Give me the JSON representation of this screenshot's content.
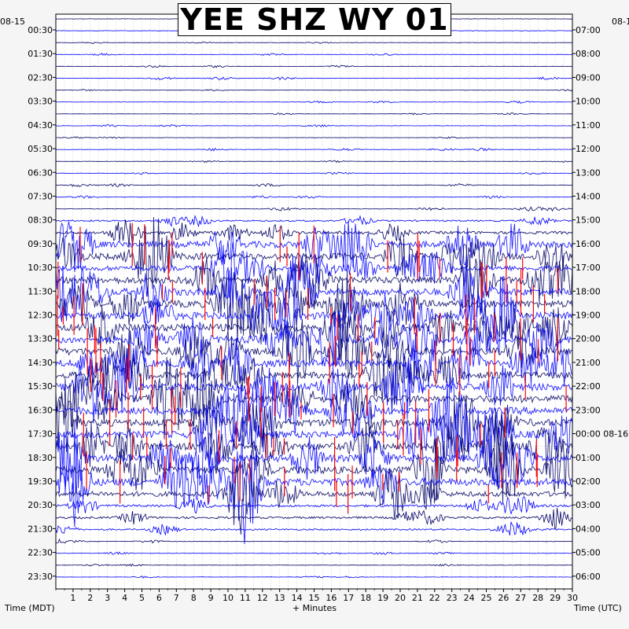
{
  "chart_data": {
    "type": "line",
    "title": "YEE SHZ WY 01",
    "xlabel": "+ Minutes",
    "left_axis_label": "Time (MDT)",
    "right_axis_label": "Time (UTC)",
    "left_date": "08-15",
    "right_date": "08-1",
    "right_date_change": "08-16",
    "x_ticks": [
      "1",
      "2",
      "3",
      "4",
      "5",
      "6",
      "7",
      "8",
      "9",
      "10",
      "11",
      "12",
      "13",
      "14",
      "15",
      "16",
      "17",
      "18",
      "19",
      "20",
      "21",
      "22",
      "23",
      "24",
      "25",
      "26",
      "27",
      "28",
      "29",
      "30"
    ],
    "xlim": [
      0,
      30
    ],
    "left_times": [
      "00:30",
      "01:30",
      "02:30",
      "03:30",
      "04:30",
      "05:30",
      "06:30",
      "07:30",
      "08:30",
      "09:30",
      "10:30",
      "11:30",
      "12:30",
      "13:30",
      "14:30",
      "15:30",
      "16:30",
      "17:30",
      "18:30",
      "19:30",
      "20:30",
      "21:30",
      "22:30",
      "23:30"
    ],
    "right_times": [
      "07:00",
      "08:00",
      "09:00",
      "10:00",
      "11:00",
      "12:00",
      "13:00",
      "14:00",
      "15:00",
      "16:00",
      "17:00",
      "18:00",
      "19:00",
      "20:00",
      "21:00",
      "22:00",
      "23:00",
      "00:00",
      "01:00",
      "02:00",
      "03:00",
      "04:00",
      "05:00",
      "06:00"
    ],
    "trace_count": 48,
    "trace_colors": [
      "#000066",
      "#0000ff"
    ],
    "clip_color": "#ff0000",
    "trace_activity": [
      0.15,
      0.18,
      0.12,
      0.15,
      0.15,
      0.2,
      0.12,
      0.15,
      0.12,
      0.15,
      0.12,
      0.18,
      0.12,
      0.15,
      0.2,
      0.18,
      0.25,
      0.3,
      0.55,
      0.9,
      0.9,
      0.7,
      0.95,
      1.0,
      1.0,
      1.0,
      1.0,
      1.0,
      1.0,
      1.0,
      0.9,
      1.0,
      1.0,
      1.0,
      1.0,
      1.0,
      1.0,
      1.0,
      1.0,
      1.0,
      0.7,
      0.45,
      0.4,
      0.3,
      0.2,
      0.18,
      0.15,
      0.12
    ],
    "grid": true
  }
}
